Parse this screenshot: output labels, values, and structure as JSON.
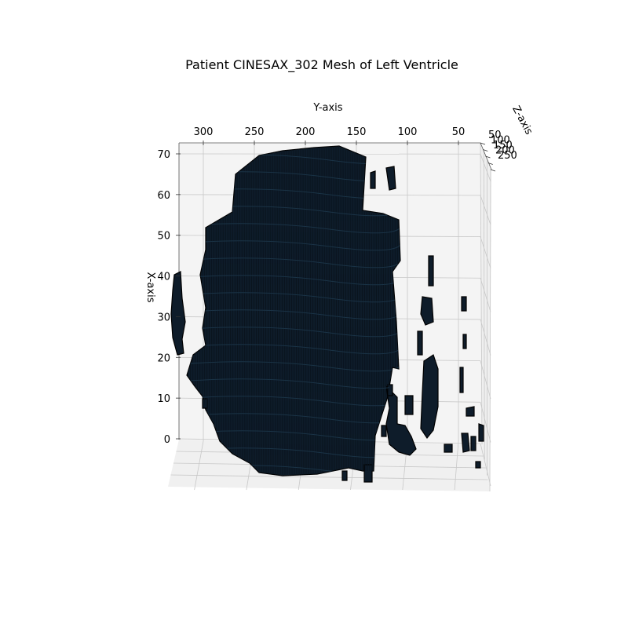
{
  "chart_data": {
    "type": "surface3d",
    "title": "Patient CINESAX_302 Mesh of Left Ventricle",
    "xlabel": "X-axis",
    "ylabel": "Y-axis",
    "zlabel": "Z-axis",
    "x_ticks": [
      "0",
      "10",
      "20",
      "30",
      "40",
      "50",
      "60",
      "70"
    ],
    "y_ticks": [
      "300",
      "250",
      "200",
      "150",
      "100",
      "50"
    ],
    "z_ticks": [
      "50",
      "100",
      "150",
      "200",
      "250"
    ],
    "xlim": [
      -5,
      72
    ],
    "ylim": [
      325,
      0
    ],
    "zlim": [
      50,
      250
    ],
    "grid": true,
    "mesh_color": "#0e1c2a",
    "edge_color": "#000000",
    "pane_color": "#f2f2f2",
    "grid_color": "#c8c8c8"
  }
}
